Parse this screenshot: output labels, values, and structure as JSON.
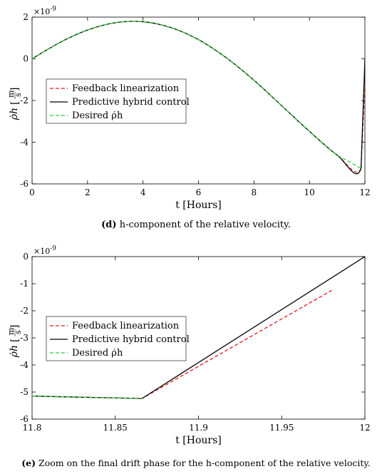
{
  "chart_data": [
    {
      "type": "line",
      "caption_tag": "(d)",
      "caption_text": "h-component of the relative velocity.",
      "xlabel": "t [Hours]",
      "ylabel_symbol": "ρ̇h",
      "ylabel_unit_num": "m",
      "ylabel_unit_den": "s",
      "exponent_label": "×10",
      "exponent_power": "-9",
      "xlim": [
        0,
        12
      ],
      "ylim": [
        -6,
        2
      ],
      "xticks": [
        "0",
        "2",
        "4",
        "6",
        "8",
        "10",
        "12"
      ],
      "xtick_values": [
        0,
        2,
        4,
        6,
        8,
        10,
        12
      ],
      "yticks": [
        "-6",
        "-4",
        "-2",
        "0",
        "2"
      ],
      "ytick_values": [
        -6,
        -4,
        -2,
        0,
        2
      ],
      "legend": [
        "Feedback linearization",
        "Predictive hybrid control",
        "Desired ρ̇h"
      ],
      "legend_position": "middle-left",
      "series": [
        {
          "name": "Feedback linearization",
          "color": "#e41a1c",
          "style": "dashed",
          "x": [
            0,
            1,
            2,
            3,
            4,
            5,
            6,
            7,
            8,
            9,
            10,
            11,
            11.86,
            12
          ],
          "y": [
            0,
            0.78,
            1.38,
            1.73,
            1.78,
            1.5,
            0.92,
            0.05,
            -1.03,
            -2.25,
            -3.48,
            -4.62,
            -5.25,
            -1.1
          ]
        },
        {
          "name": "Predictive hybrid control",
          "color": "#000000",
          "style": "solid",
          "x": [
            0,
            1,
            2,
            3,
            4,
            5,
            6,
            7,
            8,
            9,
            10,
            11,
            11.86,
            12
          ],
          "y": [
            0,
            0.78,
            1.38,
            1.73,
            1.78,
            1.5,
            0.92,
            0.05,
            -1.03,
            -2.25,
            -3.48,
            -4.62,
            -5.25,
            0
          ]
        },
        {
          "name": "Desired ρ̇h",
          "color": "#2ecc40",
          "style": "dashed",
          "x": [
            0,
            1,
            2,
            3,
            4,
            5,
            6,
            7,
            8,
            9,
            10,
            11,
            11.86
          ],
          "y": [
            0,
            0.78,
            1.38,
            1.73,
            1.78,
            1.5,
            0.92,
            0.05,
            -1.03,
            -2.25,
            -3.48,
            -4.62,
            -5.25
          ]
        }
      ]
    },
    {
      "type": "line",
      "caption_tag": "(e)",
      "caption_text": "Zoom on the final drift phase for the h-component of the relative velocity.",
      "xlabel": "t [Hours]",
      "ylabel_symbol": "ρ̇h",
      "ylabel_unit_num": "m",
      "ylabel_unit_den": "s",
      "exponent_label": "×10",
      "exponent_power": "-9",
      "xlim": [
        11.8,
        12
      ],
      "ylim": [
        -6,
        0
      ],
      "xticks": [
        "11.8",
        "11.85",
        "11.9",
        "11.95",
        "12"
      ],
      "xtick_values": [
        11.8,
        11.85,
        11.9,
        11.95,
        12
      ],
      "yticks": [
        "-6",
        "-5",
        "-4",
        "-3",
        "-2",
        "-1",
        "0"
      ],
      "ytick_values": [
        -6,
        -5,
        -4,
        -3,
        -2,
        -1,
        0
      ],
      "legend": [
        "Feedback linearization",
        "Predictive hybrid control",
        "Desired ρ̇h"
      ],
      "legend_position": "middle-left",
      "series": [
        {
          "name": "Feedback linearization",
          "color": "#e41a1c",
          "style": "dashed",
          "x": [
            11.8,
            11.866,
            11.98
          ],
          "y": [
            -5.15,
            -5.24,
            -1.25
          ]
        },
        {
          "name": "Predictive hybrid control",
          "color": "#000000",
          "style": "solid",
          "x": [
            11.8,
            11.866,
            12
          ],
          "y": [
            -5.15,
            -5.24,
            0
          ]
        },
        {
          "name": "Desired ρ̇h",
          "color": "#2ecc40",
          "style": "dashed",
          "x": [
            11.8,
            11.866
          ],
          "y": [
            -5.15,
            -5.24
          ]
        }
      ]
    }
  ]
}
